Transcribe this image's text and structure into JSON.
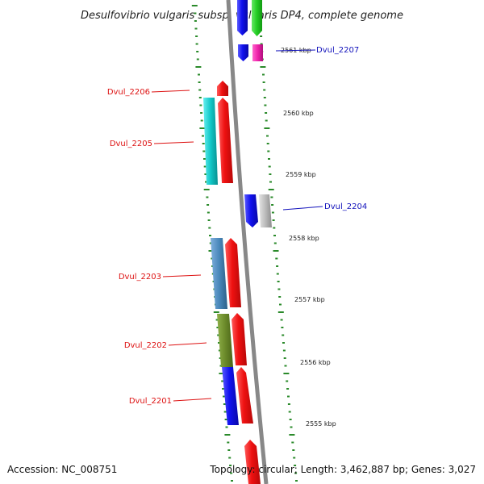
{
  "title": "Desulfovibrio vulgaris subsp. vulgaris DP4, complete genome",
  "footer": {
    "accession": "Accession: NC_008751",
    "topology": "Topology: circular; Length: 3,462,887 bp; Genes: 3,027"
  },
  "scale_labels": [
    "2561 kbp",
    "2560 kbp",
    "2559 kbp",
    "2558 kbp",
    "2557 kbp",
    "2556 kbp",
    "2555 kbp"
  ],
  "gene_labels": {
    "dvul_2207": "Dvul_2207",
    "dvul_2206": "Dvul_2206",
    "dvul_2205": "Dvul_2205",
    "dvul_2204": "Dvul_2204",
    "dvul_2203": "Dvul_2203",
    "dvul_2202": "Dvul_2202",
    "dvul_2201": "Dvul_2201"
  },
  "colors": {
    "red_gene": "#ee1111",
    "blue_gene": "#1111ee",
    "green_gene": "#22cc22",
    "magenta_gene": "#ee22aa",
    "cyan_gene": "#11c8c8",
    "steelblue_gene": "#4a88bb",
    "olive_gene": "#6b8a2a",
    "gray_gene": "#bbbbbb",
    "backbone": "#888888",
    "tick": "#2a8a2a",
    "red_label": "#dd1111",
    "blue_label": "#1111bb"
  }
}
